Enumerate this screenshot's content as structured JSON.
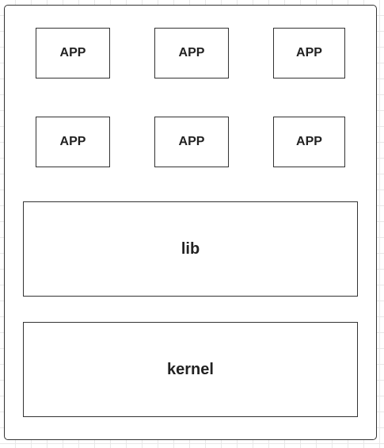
{
  "diagram": {
    "apps_row_1": [
      "APP",
      "APP",
      "APP"
    ],
    "apps_row_2": [
      "APP",
      "APP",
      "APP"
    ],
    "lib_label": "lib",
    "kernel_label": "kernel"
  }
}
